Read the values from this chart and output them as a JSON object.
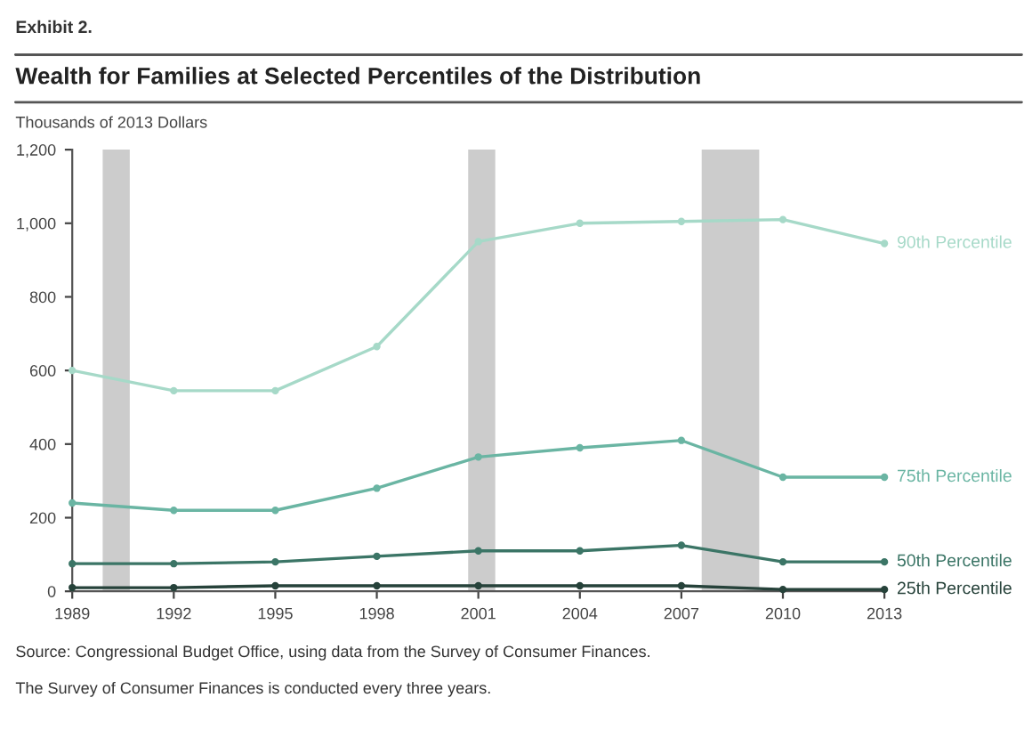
{
  "chart_data": {
    "type": "line",
    "title": "Wealth for Families at Selected Percentiles of the Distribution",
    "ylabel": "Thousands of 2013 Dollars",
    "annotations": [
      "Exhibit 2.",
      "Source: Congressional Budget Office, using data from the Survey of Consumer Finances.",
      "The Survey of Consumer Finances is conducted every three years."
    ],
    "x": [
      1989,
      1992,
      1995,
      1998,
      2001,
      2004,
      2007,
      2010,
      2013
    ],
    "series": [
      {
        "name": "90th Percentile",
        "color": "#a6d9c8",
        "values": [
          600,
          545,
          545,
          665,
          950,
          1000,
          1005,
          1010,
          945
        ]
      },
      {
        "name": "75th Percentile",
        "color": "#6ab5a3",
        "values": [
          240,
          220,
          220,
          280,
          365,
          390,
          410,
          310,
          310
        ]
      },
      {
        "name": "50th Percentile",
        "color": "#3b7566",
        "values": [
          75,
          75,
          80,
          95,
          110,
          110,
          125,
          80,
          80
        ]
      },
      {
        "name": "25th Percentile",
        "color": "#26423a",
        "values": [
          10,
          10,
          15,
          15,
          15,
          15,
          15,
          5,
          5
        ]
      }
    ],
    "xlim": [
      1989,
      2013
    ],
    "xticks": [
      1989,
      1992,
      1995,
      1998,
      2001,
      2004,
      2007,
      2010,
      2013
    ],
    "ylim": [
      0,
      1200
    ],
    "yticks": [
      0,
      200,
      400,
      600,
      800,
      {
        "value": 1000,
        "label": "1,000"
      },
      {
        "value": 1200,
        "label": "1,200"
      }
    ],
    "bands": [
      {
        "axis": "x",
        "from": 1989.9,
        "to": 1990.7,
        "color": "#cccccc"
      },
      {
        "axis": "x",
        "from": 2000.7,
        "to": 2001.5,
        "color": "#cccccc"
      },
      {
        "axis": "x",
        "from": 2007.6,
        "to": 2009.3,
        "color": "#cccccc"
      }
    ],
    "grid": false,
    "legend": false,
    "marker": "circle",
    "line_style": "solid"
  }
}
